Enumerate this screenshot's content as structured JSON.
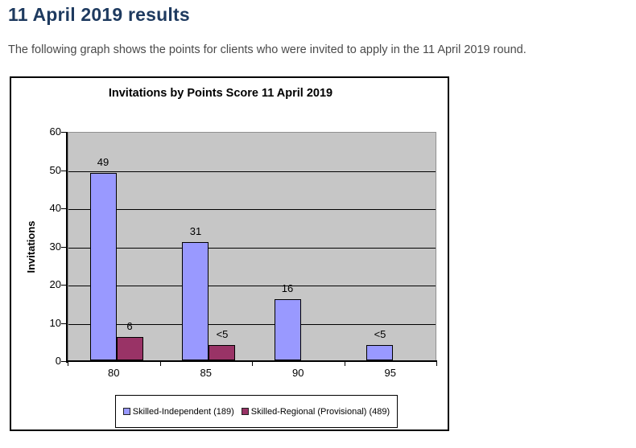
{
  "page": {
    "heading": "11 April 2019 results",
    "description": "The following graph shows the points for clients who were invited to apply in the 11 April 2019 round."
  },
  "colors": {
    "heading_text": "#1e3a5f",
    "body_text": "#4a4a4a",
    "plot_background": "#C6C6C6",
    "series1": "#9999FF",
    "series2": "#993366"
  },
  "chart_data": {
    "type": "bar",
    "title": "Invitations by Points Score 11 April 2019",
    "ylabel": "Invitations",
    "xlabel": "",
    "ylim": [
      0,
      60
    ],
    "yticks": [
      0,
      10,
      20,
      30,
      40,
      50,
      60
    ],
    "grid": true,
    "legend_position": "bottom",
    "categories": [
      "80",
      "85",
      "90",
      "95"
    ],
    "series": [
      {
        "name": "Skilled-Independent (189)",
        "color": "#9999FF",
        "values": [
          49,
          31,
          16,
          4
        ],
        "labels": [
          "49",
          "31",
          "16",
          "<5"
        ]
      },
      {
        "name": "Skilled-Regional (Provisional) (489)",
        "color": "#993366",
        "values": [
          6,
          4,
          null,
          null
        ],
        "labels": [
          "6",
          "<5",
          null,
          null
        ]
      }
    ]
  }
}
